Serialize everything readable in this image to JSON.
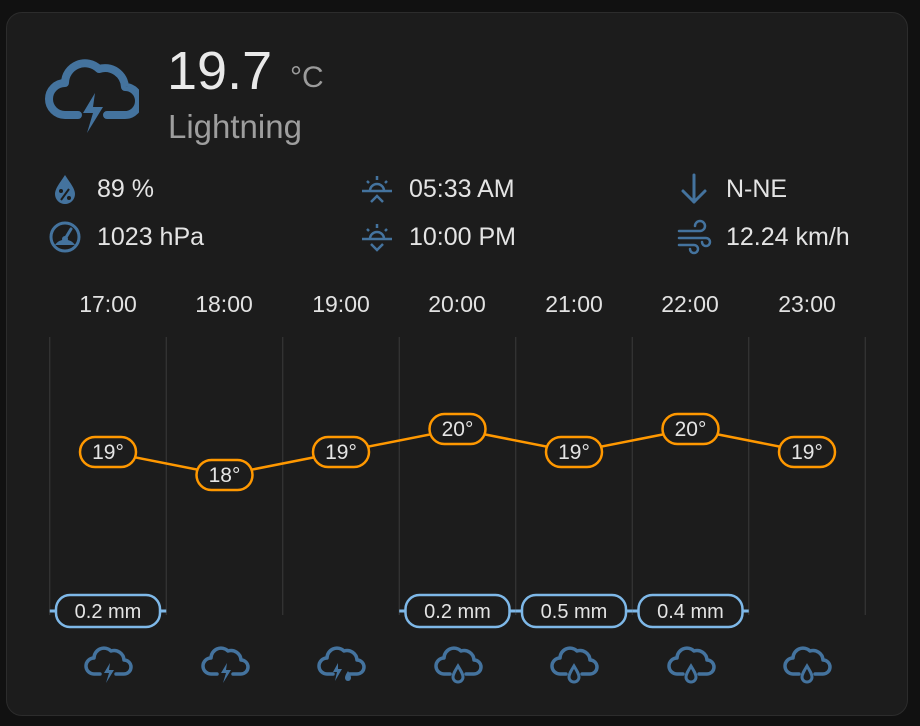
{
  "current": {
    "temperature": "19.7",
    "unit": "°C",
    "condition": "Lightning",
    "icon": "lightning-cloud-icon"
  },
  "attributes": {
    "humidity": "89 %",
    "pressure": "1023 hPa",
    "sunrise": "05:33 AM",
    "sunset": "10:00 PM",
    "wind_direction": "N-NE",
    "wind_speed": "12.24 km/h"
  },
  "colors": {
    "accent": "#44739e",
    "temperature_line": "#ff9800",
    "precipitation": "#7eb8e8",
    "background": "#1c1c1c"
  },
  "chart_data": {
    "type": "line",
    "x": [
      "17:00",
      "18:00",
      "19:00",
      "20:00",
      "21:00",
      "22:00",
      "23:00"
    ],
    "series": [
      {
        "values": [
          19,
          18,
          19,
          20,
          19,
          20,
          19
        ],
        "labels": [
          "19°",
          "18°",
          "19°",
          "20°",
          "19°",
          "20°",
          "19°"
        ]
      }
    ],
    "precipitation": {
      "values": [
        0.2,
        0,
        0,
        0.2,
        0.5,
        0.4,
        0
      ],
      "labels": [
        "0.2 mm",
        "",
        "",
        "0.2 mm",
        "0.5 mm",
        "0.4 mm",
        ""
      ]
    },
    "conditions": [
      "lightning",
      "lightning",
      "lightning-rainy",
      "rainy",
      "rainy",
      "rainy",
      "rainy"
    ],
    "grid": true
  }
}
